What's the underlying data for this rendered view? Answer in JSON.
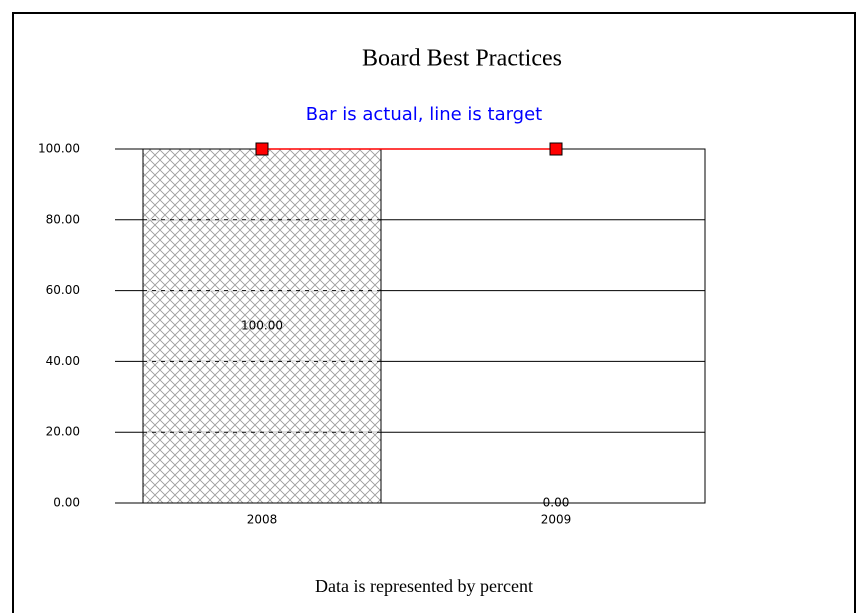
{
  "chart_data": {
    "type": "bar",
    "title": "Board Best Practices",
    "subtitle": "Bar is actual, line is target",
    "caption": "Data is represented by percent",
    "categories": [
      "2008",
      "2009"
    ],
    "series": [
      {
        "type": "bar",
        "color": "#999999",
        "values": [
          100,
          0
        ],
        "value_labels": [
          "100.00",
          "0.00"
        ]
      },
      {
        "type": "line",
        "color": "#ff0000",
        "values": [
          100,
          100
        ]
      }
    ],
    "ylim": [
      0,
      100
    ],
    "yticks": [
      {
        "value": 0,
        "label": "0.00"
      },
      {
        "value": 20,
        "label": "20.00"
      },
      {
        "value": 40,
        "label": "40.00"
      },
      {
        "value": 60,
        "label": "60.00"
      },
      {
        "value": 80,
        "label": "80.00"
      },
      {
        "value": 100,
        "label": "100.00"
      }
    ],
    "grid": true
  }
}
